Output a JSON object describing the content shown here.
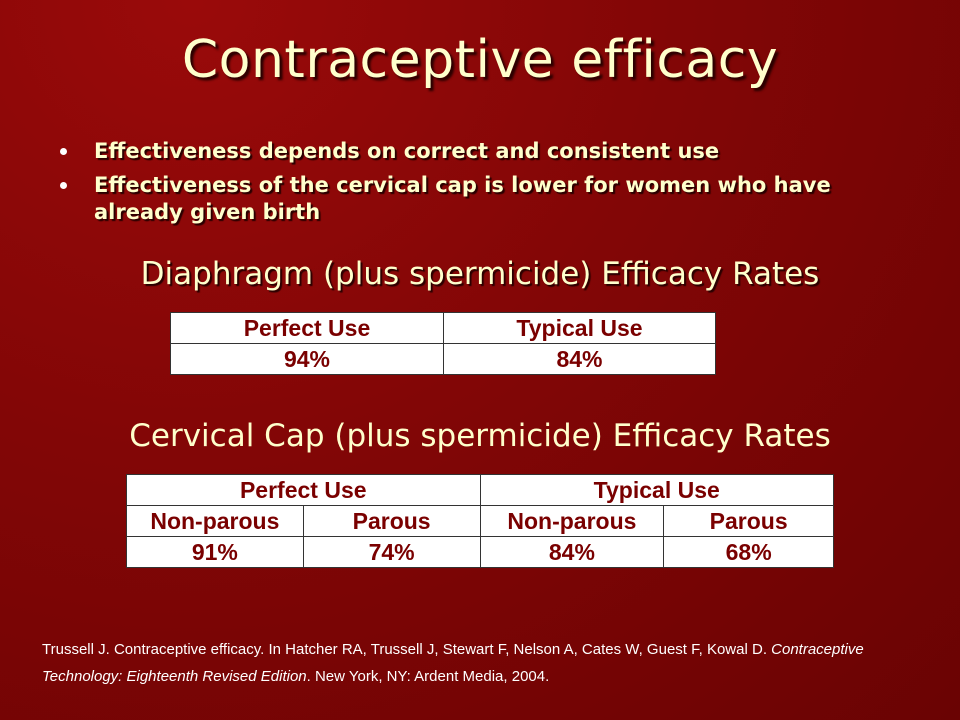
{
  "title": "Contraceptive efficacy",
  "bullets": [
    "Effectiveness depends on correct and consistent use",
    "Effectiveness of the cervical cap is lower for women who have already given birth"
  ],
  "diaphragm": {
    "heading": "Diaphragm (plus spermicide) Efficacy Rates",
    "headers": [
      "Perfect Use",
      "Typical Use"
    ],
    "values": [
      "94%",
      "84%"
    ]
  },
  "cervical_cap": {
    "heading": "Cervical Cap (plus spermicide) Efficacy Rates",
    "group_headers": [
      "Perfect Use",
      "Typical Use"
    ],
    "sub_headers": [
      "Non-parous",
      "Parous",
      "Non-parous",
      "Parous"
    ],
    "values": [
      "91%",
      "74%",
      "84%",
      "68%"
    ]
  },
  "citation": {
    "before": "Trussell J. Contraceptive efficacy. In Hatcher RA, Trussell J, Stewart F, Nelson A, Cates W, Guest F, Kowal D. ",
    "italic": "Contraceptive Technology: Eighteenth Revised Edition",
    "after": ". New York, NY: Ardent Media, 2004."
  },
  "colors": {
    "background": "#820606",
    "title_text": "#ffffcc",
    "table_text": "#7a0000"
  }
}
